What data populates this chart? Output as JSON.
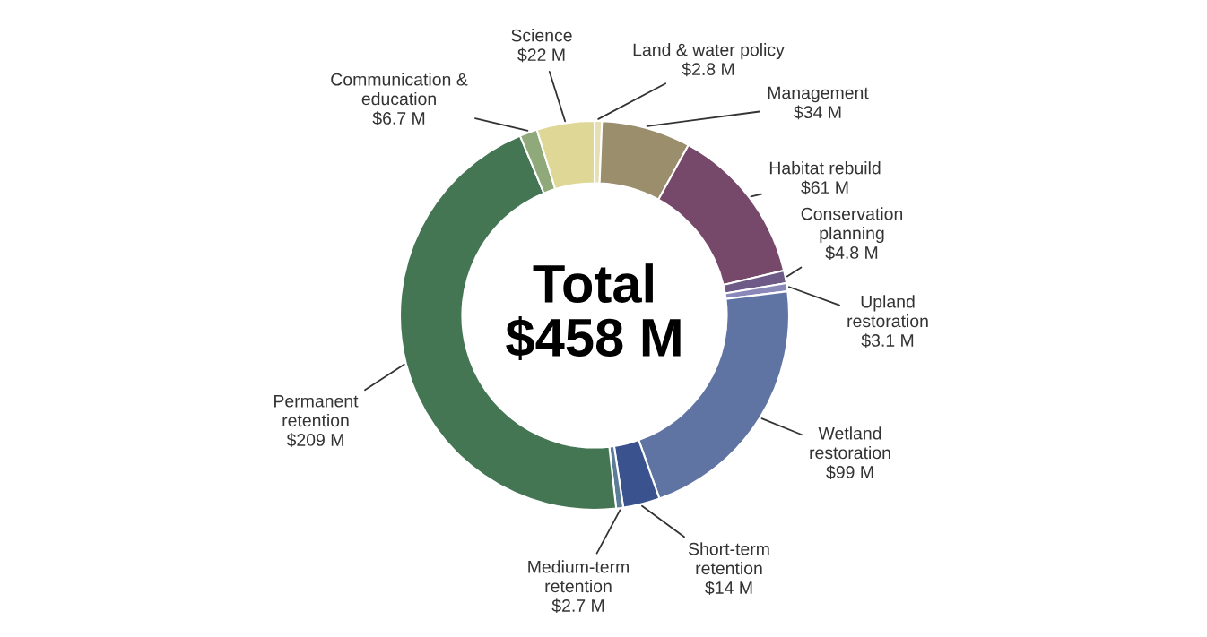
{
  "chart_data": {
    "type": "donut",
    "categories": [
      "Land & water policy",
      "Management",
      "Habitat rebuild",
      "Conservation\nplanning",
      "Upland\nrestoration",
      "Wetland\nrestoration",
      "Short-term\nretention",
      "Medium-term\nretention",
      "Permanent\nretention",
      "Communication &\neducation",
      "Science"
    ],
    "values": [
      2.8,
      34,
      61,
      4.8,
      3.1,
      99,
      14,
      2.7,
      209,
      6.7,
      22
    ],
    "value_labels": [
      "$2.8 M",
      "$34 M",
      "$61 M",
      "$4.8 M",
      "$3.1 M",
      "$99 M",
      "$14 M",
      "$2.7 M",
      "$209 M",
      "$6.7 M",
      "$22 M"
    ],
    "colors": [
      "#e6dfb4",
      "#9a8e6c",
      "#76496a",
      "#6e5a86",
      "#8a88b8",
      "#6074a4",
      "#3a538e",
      "#5b7d98",
      "#457654",
      "#8fa97a",
      "#ded796"
    ],
    "annotations": [
      "Total\n$458 M"
    ],
    "legend": false
  }
}
